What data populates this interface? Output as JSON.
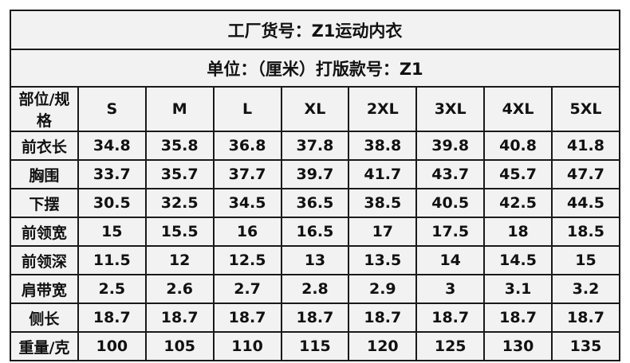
{
  "title": "工厂货号：Z1运动内衣",
  "subtitle": "单位：（厘米）打版款号：Z1",
  "header": [
    "部位/规格",
    "S",
    "M",
    "L",
    "XL",
    "2XL",
    "3XL",
    "4XL",
    "5XL"
  ],
  "rows": [
    {
      "label": "前衣长",
      "values": [
        "34.8",
        "35.8",
        "36.8",
        "37.8",
        "38.8",
        "39.8",
        "40.8",
        "41.8"
      ]
    },
    {
      "label": "胸围",
      "values": [
        "33.7",
        "35.7",
        "37.7",
        "39.7",
        "41.7",
        "43.7",
        "45.7",
        "47.7"
      ]
    },
    {
      "label": "下摆",
      "values": [
        "30.5",
        "32.5",
        "34.5",
        "36.5",
        "38.5",
        "40.5",
        "42.5",
        "44.5"
      ]
    },
    {
      "label": "前领宽",
      "values": [
        "15",
        "15.5",
        "16",
        "16.5",
        "17",
        "17.5",
        "18",
        "18.5"
      ]
    },
    {
      "label": "前领深",
      "values": [
        "11.5",
        "12",
        "12.5",
        "13",
        "13.5",
        "14",
        "14.5",
        "15"
      ]
    },
    {
      "label": "肩带宽",
      "values": [
        "2.5",
        "2.6",
        "2.7",
        "2.8",
        "2.9",
        "3",
        "3.1",
        "3.2"
      ]
    },
    {
      "label": "侧长",
      "values": [
        "18.7",
        "18.7",
        "18.7",
        "18.7",
        "18.7",
        "18.7",
        "18.7",
        "18.7"
      ]
    },
    {
      "label": "重量/克",
      "values": [
        "100",
        "105",
        "110",
        "115",
        "120",
        "125",
        "130",
        "135"
      ]
    }
  ]
}
